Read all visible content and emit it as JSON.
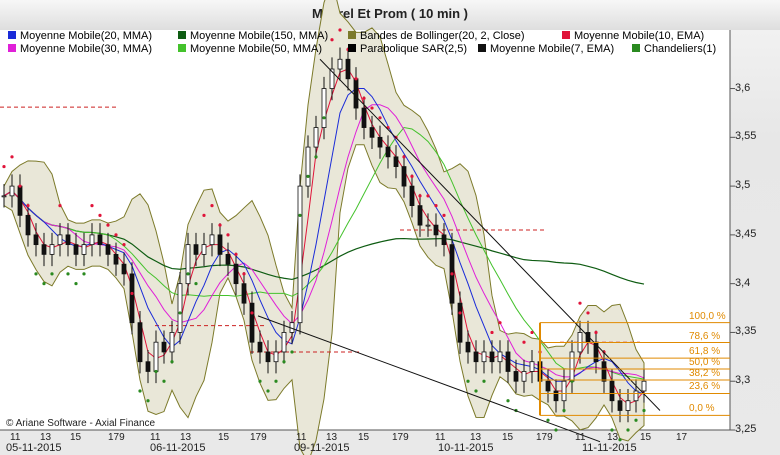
{
  "title": "Maurel Et Prom  ( 10 min )",
  "copyright": "© Ariane Software - Axial Finance",
  "legend": [
    {
      "label": "Moyenne Mobile(20, MMA)",
      "color": "#1a2bd8"
    },
    {
      "label": "Moyenne Mobile(150, MMA)",
      "color": "#0e5c12"
    },
    {
      "label": "Bandes de Bollinger(20, 2, Close)",
      "color": "#7c7a2a"
    },
    {
      "label": "Moyenne Mobile(10, EMA)",
      "color": "#e0143a"
    },
    {
      "label": "Moyenne Mobile(30, MMA)",
      "color": "#e020d8"
    },
    {
      "label": "Moyenne Mobile(50, MMA)",
      "color": "#44c22c"
    },
    {
      "label": "Parabolique SAR(2,5)",
      "color": "#000000"
    },
    {
      "label": "Moyenne Mobile(7, EMA)",
      "color": "#111111"
    },
    {
      "label": "Chandeliers(1)",
      "color": "#2a8a20"
    }
  ],
  "chart_data": {
    "type": "candlestick",
    "ylim": [
      3.25,
      3.66
    ],
    "y_ticks": [
      "3,6",
      "3,55",
      "3,5",
      "3,45",
      "3,4",
      "3,35",
      "3,3",
      "3,25"
    ],
    "y_tick_values": [
      3.6,
      3.55,
      3.5,
      3.45,
      3.4,
      3.35,
      3.3,
      3.25
    ],
    "x_ticks": [
      "11",
      "13",
      "15",
      "179",
      "11",
      "13",
      "15",
      "179",
      "11",
      "13",
      "15",
      "179",
      "11",
      "13",
      "15",
      "179",
      "11",
      "13",
      "15",
      "17"
    ],
    "dates": [
      "05-11-2015",
      "06-11-2015",
      "09-11-2015",
      "10-11-2015",
      "11-11-2015"
    ],
    "fibonacci": {
      "levels": [
        "100,0 %",
        "78,6 %",
        "61,8 %",
        "50,0 %",
        "38,2 %",
        "23,6 %",
        "0,0 %"
      ],
      "fractions": [
        1.0,
        0.786,
        0.618,
        0.5,
        0.382,
        0.236,
        0.0
      ],
      "price_high": 3.36,
      "price_low": 3.265
    },
    "close_series": [
      3.49,
      3.5,
      3.47,
      3.45,
      3.44,
      3.43,
      3.44,
      3.45,
      3.44,
      3.43,
      3.44,
      3.45,
      3.44,
      3.43,
      3.42,
      3.41,
      3.36,
      3.32,
      3.31,
      3.34,
      3.33,
      3.35,
      3.4,
      3.44,
      3.43,
      3.44,
      3.45,
      3.43,
      3.42,
      3.4,
      3.38,
      3.34,
      3.33,
      3.32,
      3.33,
      3.35,
      3.36,
      3.5,
      3.54,
      3.56,
      3.6,
      3.62,
      3.63,
      3.61,
      3.58,
      3.56,
      3.55,
      3.54,
      3.53,
      3.52,
      3.5,
      3.48,
      3.46,
      3.46,
      3.45,
      3.44,
      3.38,
      3.34,
      3.33,
      3.32,
      3.33,
      3.32,
      3.33,
      3.31,
      3.3,
      3.31,
      3.32,
      3.3,
      3.29,
      3.28,
      3.3,
      3.33,
      3.35,
      3.34,
      3.32,
      3.3,
      3.28,
      3.27,
      3.28,
      3.29,
      3.3
    ]
  }
}
